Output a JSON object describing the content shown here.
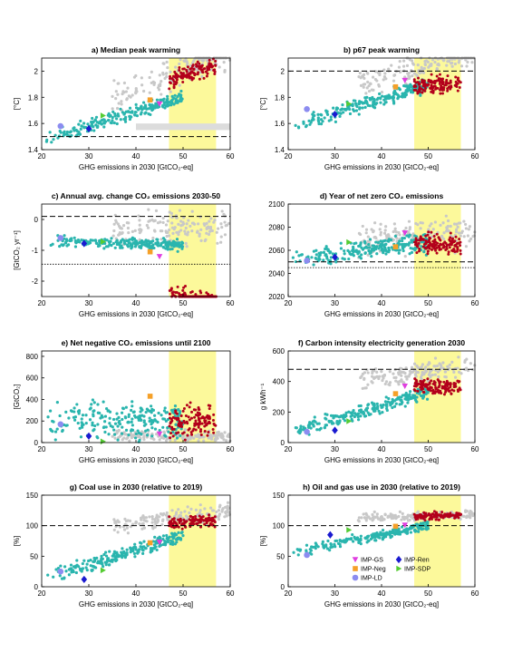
{
  "figure": {
    "x_label": "GHG emissions in 2030 [GtCO₂-eq]",
    "x_ticks": [
      "20",
      "30",
      "40",
      "50",
      "60"
    ],
    "colors": {
      "scatter_cyan": "#2ab5ae",
      "scatter_red": "#b3001b",
      "scatter_grey": "#c8c8c8",
      "highlight": "#fcf99b"
    },
    "legend": [
      {
        "name": "IMP-GS",
        "color": "#e03ee0",
        "marker": "triangle-down"
      },
      {
        "name": "IMP-Ren",
        "color": "#1a1ad0",
        "marker": "diamond"
      },
      {
        "name": "IMP-Neg",
        "color": "#f5a028",
        "marker": "square"
      },
      {
        "name": "IMP-SDP",
        "color": "#55cc33",
        "marker": "triangle-right"
      },
      {
        "name": "IMP-LD",
        "color": "#8c8cf0",
        "marker": "circle"
      }
    ]
  },
  "chart_data": [
    {
      "id": "a",
      "type": "scatter",
      "title": "a) Median peak warming",
      "ylabel": "[°C]",
      "xlim": [
        20,
        60
      ],
      "ylim": [
        1.4,
        2.1
      ],
      "y_ticks": [
        {
          "v": 1.4,
          "t": "1.4"
        },
        {
          "v": 1.6,
          "t": "1.6"
        },
        {
          "v": 1.8,
          "t": "1.8"
        },
        {
          "v": 2.0,
          "t": "2"
        }
      ],
      "highlight_x": [
        47,
        57
      ],
      "hline": 1.5,
      "band": [
        1.55,
        1.6
      ],
      "imp": [
        {
          "n": "IMP-GS",
          "x": 45,
          "y": 1.75
        },
        {
          "n": "IMP-Ren",
          "x": 30,
          "y": 1.56
        },
        {
          "n": "IMP-Neg",
          "x": 43,
          "y": 1.78
        },
        {
          "n": "IMP-SDP",
          "x": 33,
          "y": 1.66
        },
        {
          "n": "IMP-LD",
          "x": 24,
          "y": 1.58
        }
      ]
    },
    {
      "id": "b",
      "type": "scatter",
      "title": "b) p67 peak warming",
      "ylabel": "[°C]",
      "xlim": [
        20,
        60
      ],
      "ylim": [
        1.4,
        2.1
      ],
      "y_ticks": [
        {
          "v": 1.4,
          "t": "1.4"
        },
        {
          "v": 1.6,
          "t": "1.6"
        },
        {
          "v": 1.8,
          "t": "1.8"
        },
        {
          "v": 2.0,
          "t": "2"
        }
      ],
      "highlight_x": [
        47,
        57
      ],
      "hline": 2.0,
      "imp": [
        {
          "n": "IMP-GS",
          "x": 45,
          "y": 1.93
        },
        {
          "n": "IMP-Ren",
          "x": 30,
          "y": 1.67
        },
        {
          "n": "IMP-Neg",
          "x": 43,
          "y": 1.88
        },
        {
          "n": "IMP-SDP",
          "x": 33,
          "y": 1.75
        },
        {
          "n": "IMP-LD",
          "x": 24,
          "y": 1.71
        }
      ]
    },
    {
      "id": "c",
      "type": "scatter",
      "title": "c) Annual avg. change CO₂ emissions 2030-50",
      "ylabel": "[GtCO₂ yr⁻¹]",
      "xlim": [
        20,
        60
      ],
      "ylim": [
        -2.5,
        0.5
      ],
      "y_ticks": [
        {
          "v": -2,
          "t": "-2"
        },
        {
          "v": -1,
          "t": "-1"
        },
        {
          "v": 0,
          "t": "0"
        }
      ],
      "highlight_x": [
        47,
        57
      ],
      "hline": 0.1,
      "hline2": -1.45,
      "imp": [
        {
          "n": "IMP-GS",
          "x": 45,
          "y": -1.2
        },
        {
          "n": "IMP-Ren",
          "x": 29,
          "y": -0.78
        },
        {
          "n": "IMP-Neg",
          "x": 43,
          "y": -1.05
        },
        {
          "n": "IMP-SDP",
          "x": 33,
          "y": -0.72
        },
        {
          "n": "IMP-LD",
          "x": 24,
          "y": -0.6
        }
      ]
    },
    {
      "id": "d",
      "type": "scatter",
      "title": "d) Year of net zero CO₂ emissions",
      "ylabel": "",
      "xlim": [
        20,
        60
      ],
      "ylim": [
        2020,
        2100
      ],
      "y_ticks": [
        {
          "v": 2020,
          "t": "2020"
        },
        {
          "v": 2040,
          "t": "2040"
        },
        {
          "v": 2060,
          "t": "2060"
        },
        {
          "v": 2080,
          "t": "2080"
        },
        {
          "v": 2100,
          "t": "2100"
        }
      ],
      "highlight_x": [
        47,
        57
      ],
      "hline": 2050,
      "hline2": 2045,
      "imp": [
        {
          "n": "IMP-GS",
          "x": 45,
          "y": 2075
        },
        {
          "n": "IMP-Ren",
          "x": 30,
          "y": 2054
        },
        {
          "n": "IMP-Neg",
          "x": 43,
          "y": 2063
        },
        {
          "n": "IMP-SDP",
          "x": 33,
          "y": 2067
        },
        {
          "n": "IMP-LD",
          "x": 24,
          "y": 2051
        }
      ]
    },
    {
      "id": "e",
      "type": "scatter",
      "title": "e) Net negative CO₂ emissions until 2100",
      "ylabel": "[GtCO₂]",
      "xlim": [
        20,
        60
      ],
      "ylim": [
        0,
        850
      ],
      "y_ticks": [
        {
          "v": 0,
          "t": "0"
        },
        {
          "v": 200,
          "t": "200"
        },
        {
          "v": 400,
          "t": "400"
        },
        {
          "v": 600,
          "t": "600"
        },
        {
          "v": 800,
          "t": "800"
        }
      ],
      "highlight_x": [
        47,
        57
      ],
      "imp": [
        {
          "n": "IMP-GS",
          "x": 45,
          "y": 80
        },
        {
          "n": "IMP-Ren",
          "x": 30,
          "y": 60
        },
        {
          "n": "IMP-Neg",
          "x": 43,
          "y": 430
        },
        {
          "n": "IMP-SDP",
          "x": 33,
          "y": 10
        },
        {
          "n": "IMP-LD",
          "x": 24,
          "y": 170
        }
      ]
    },
    {
      "id": "f",
      "type": "scatter",
      "title": "f) Carbon intensity electricity generation 2030",
      "ylabel": "g kWh⁻¹",
      "xlim": [
        20,
        60
      ],
      "ylim": [
        0,
        600
      ],
      "y_ticks": [
        {
          "v": 0,
          "t": "0"
        },
        {
          "v": 200,
          "t": "200"
        },
        {
          "v": 400,
          "t": "400"
        },
        {
          "v": 600,
          "t": "600"
        }
      ],
      "highlight_x": [
        47,
        57
      ],
      "hline": 480,
      "imp": [
        {
          "n": "IMP-GS",
          "x": 45,
          "y": 370
        },
        {
          "n": "IMP-Ren",
          "x": 30,
          "y": 80
        },
        {
          "n": "IMP-Neg",
          "x": 43,
          "y": 320
        },
        {
          "n": "IMP-SDP",
          "x": 33,
          "y": 140
        },
        {
          "n": "IMP-LD",
          "x": 24,
          "y": 70
        }
      ]
    },
    {
      "id": "g",
      "type": "scatter",
      "title": "g) Coal use in 2030 (relative to 2019)",
      "ylabel": "[%]",
      "xlim": [
        20,
        60
      ],
      "ylim": [
        0,
        150
      ],
      "y_ticks": [
        {
          "v": 0,
          "t": "0"
        },
        {
          "v": 50,
          "t": "50"
        },
        {
          "v": 100,
          "t": "100"
        },
        {
          "v": 150,
          "t": "150"
        }
      ],
      "highlight_x": [
        47,
        57
      ],
      "hline": 100,
      "imp": [
        {
          "n": "IMP-GS",
          "x": 45,
          "y": 73
        },
        {
          "n": "IMP-Ren",
          "x": 29,
          "y": 12
        },
        {
          "n": "IMP-Neg",
          "x": 43,
          "y": 72
        },
        {
          "n": "IMP-SDP",
          "x": 33,
          "y": 27
        },
        {
          "n": "IMP-LD",
          "x": 24,
          "y": 25
        }
      ]
    },
    {
      "id": "h",
      "type": "scatter",
      "title": "h) Oil and gas use in 2030 (relative to 2019)",
      "ylabel": "[%]",
      "xlim": [
        20,
        60
      ],
      "ylim": [
        0,
        150
      ],
      "y_ticks": [
        {
          "v": 0,
          "t": "0"
        },
        {
          "v": 50,
          "t": "50"
        },
        {
          "v": 100,
          "t": "100"
        },
        {
          "v": 150,
          "t": "150"
        }
      ],
      "highlight_x": [
        47,
        57
      ],
      "hline": 100,
      "imp": [
        {
          "n": "IMP-GS",
          "x": 45,
          "y": 101
        },
        {
          "n": "IMP-Ren",
          "x": 29,
          "y": 85
        },
        {
          "n": "IMP-Neg",
          "x": 43,
          "y": 99
        },
        {
          "n": "IMP-SDP",
          "x": 33,
          "y": 93
        },
        {
          "n": "IMP-LD",
          "x": 24,
          "y": 52
        }
      ]
    }
  ]
}
